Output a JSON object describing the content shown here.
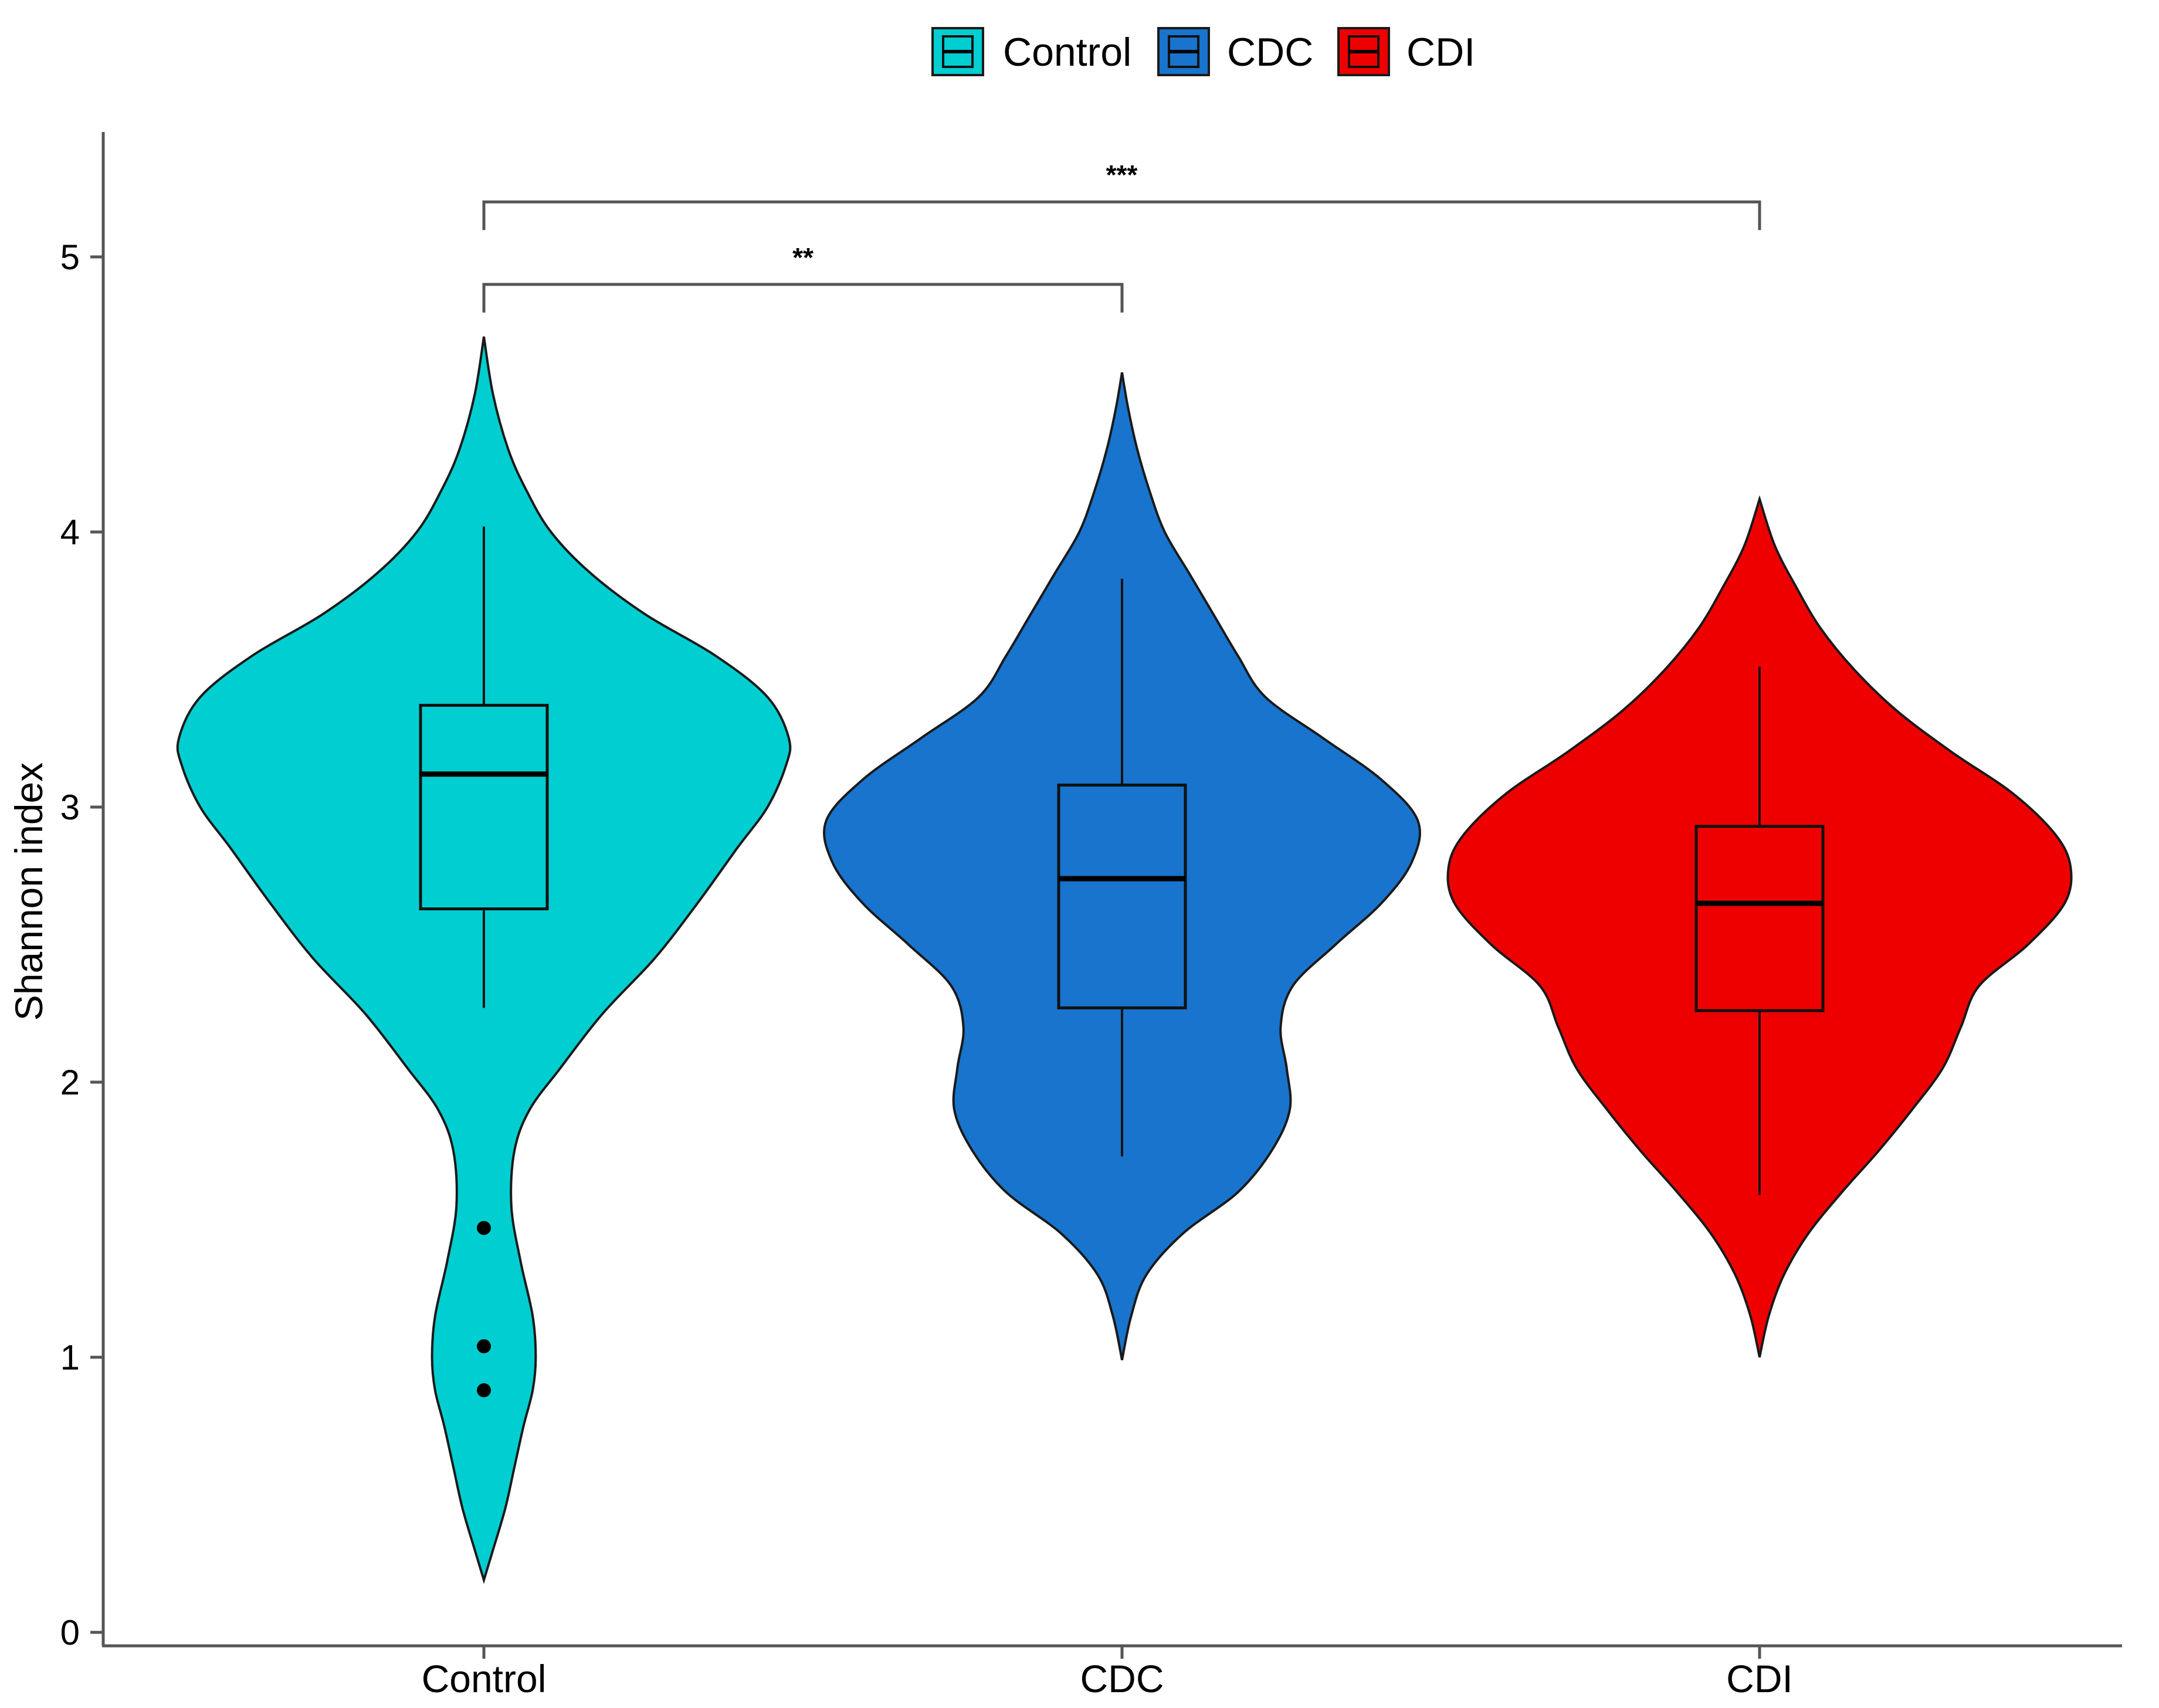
{
  "chart_data": {
    "type": "violin",
    "ylabel": "Shannon index",
    "xlabel": "",
    "ylim": [
      0,
      5.45
    ],
    "yticks": [
      0,
      1,
      2,
      3,
      4,
      5
    ],
    "categories": [
      "Control",
      "CDC",
      "CDI"
    ],
    "legend": {
      "position": "top",
      "entries": [
        "Control",
        "CDC",
        "CDI"
      ]
    },
    "colors": {
      "Control": "#00CED1",
      "CDC": "#1874CD",
      "CDI": "#EE0000"
    },
    "groups": [
      {
        "name": "Control",
        "color": "#00CED1",
        "box": {
          "lower_whisker": 2.27,
          "q1": 2.63,
          "median": 3.12,
          "q3": 3.37,
          "upper_whisker": 4.02
        },
        "outliers": [
          1.47,
          1.04,
          0.88
        ],
        "violin_range": [
          0.19,
          4.71
        ],
        "density": [
          [
            0.19,
            0.0
          ],
          [
            0.3,
            0.03
          ],
          [
            0.45,
            0.07
          ],
          [
            0.6,
            0.1
          ],
          [
            0.75,
            0.13
          ],
          [
            0.88,
            0.16
          ],
          [
            1.0,
            0.17
          ],
          [
            1.15,
            0.16
          ],
          [
            1.35,
            0.12
          ],
          [
            1.55,
            0.09
          ],
          [
            1.75,
            0.1
          ],
          [
            1.9,
            0.15
          ],
          [
            2.05,
            0.25
          ],
          [
            2.25,
            0.39
          ],
          [
            2.45,
            0.56
          ],
          [
            2.65,
            0.7
          ],
          [
            2.85,
            0.83
          ],
          [
            3.0,
            0.93
          ],
          [
            3.15,
            0.99
          ],
          [
            3.25,
            1.0
          ],
          [
            3.4,
            0.93
          ],
          [
            3.55,
            0.76
          ],
          [
            3.7,
            0.53
          ],
          [
            3.85,
            0.35
          ],
          [
            4.0,
            0.22
          ],
          [
            4.15,
            0.14
          ],
          [
            4.3,
            0.08
          ],
          [
            4.5,
            0.03
          ],
          [
            4.71,
            0.0
          ]
        ]
      },
      {
        "name": "CDC",
        "color": "#1874CD",
        "box": {
          "lower_whisker": 1.73,
          "q1": 2.27,
          "median": 2.74,
          "q3": 3.08,
          "upper_whisker": 3.83
        },
        "outliers": [],
        "violin_range": [
          0.99,
          4.58
        ],
        "density": [
          [
            0.99,
            0.0
          ],
          [
            1.15,
            0.03
          ],
          [
            1.3,
            0.08
          ],
          [
            1.45,
            0.2
          ],
          [
            1.6,
            0.38
          ],
          [
            1.75,
            0.49
          ],
          [
            1.9,
            0.55
          ],
          [
            2.05,
            0.54
          ],
          [
            2.2,
            0.52
          ],
          [
            2.35,
            0.56
          ],
          [
            2.5,
            0.7
          ],
          [
            2.65,
            0.85
          ],
          [
            2.8,
            0.95
          ],
          [
            2.95,
            0.97
          ],
          [
            3.1,
            0.85
          ],
          [
            3.25,
            0.66
          ],
          [
            3.4,
            0.47
          ],
          [
            3.55,
            0.38
          ],
          [
            3.7,
            0.3
          ],
          [
            3.85,
            0.22
          ],
          [
            4.0,
            0.14
          ],
          [
            4.15,
            0.09
          ],
          [
            4.3,
            0.05
          ],
          [
            4.45,
            0.02
          ],
          [
            4.58,
            0.0
          ]
        ]
      },
      {
        "name": "CDI",
        "color": "#EE0000",
        "box": {
          "lower_whisker": 1.59,
          "q1": 2.26,
          "median": 2.65,
          "q3": 2.93,
          "upper_whisker": 3.51
        },
        "outliers": [],
        "violin_range": [
          1.0,
          4.12
        ],
        "density": [
          [
            1.0,
            0.0
          ],
          [
            1.15,
            0.03
          ],
          [
            1.3,
            0.08
          ],
          [
            1.45,
            0.16
          ],
          [
            1.6,
            0.27
          ],
          [
            1.75,
            0.39
          ],
          [
            1.9,
            0.5
          ],
          [
            2.05,
            0.6
          ],
          [
            2.2,
            0.66
          ],
          [
            2.35,
            0.72
          ],
          [
            2.5,
            0.88
          ],
          [
            2.65,
            1.0
          ],
          [
            2.78,
            1.02
          ],
          [
            2.9,
            0.97
          ],
          [
            3.05,
            0.83
          ],
          [
            3.2,
            0.63
          ],
          [
            3.35,
            0.45
          ],
          [
            3.5,
            0.31
          ],
          [
            3.65,
            0.2
          ],
          [
            3.8,
            0.12
          ],
          [
            3.95,
            0.05
          ],
          [
            4.12,
            0.0
          ]
        ]
      }
    ],
    "comparisons": [
      {
        "from": "Control",
        "to": "CDC",
        "y": 4.9,
        "label": "**"
      },
      {
        "from": "Control",
        "to": "CDI",
        "y": 5.2,
        "label": "***"
      }
    ]
  }
}
